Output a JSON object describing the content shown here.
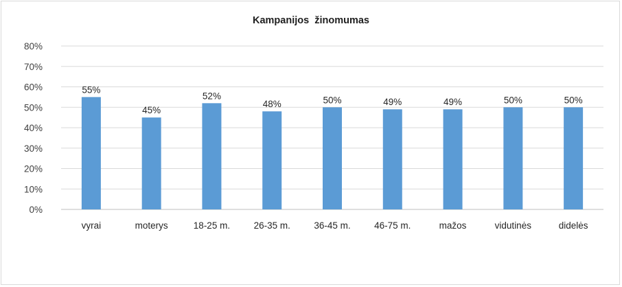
{
  "chart_data": {
    "type": "bar",
    "title": "Kampanijos  žinomumas",
    "xlabel": "",
    "ylabel": "",
    "categories": [
      "vyrai",
      "moterys",
      "18-25 m.",
      "26-35 m.",
      "36-45 m.",
      "46-75 m.",
      "mažos",
      "vidutinės",
      "didelės"
    ],
    "values": [
      55,
      45,
      52,
      48,
      50,
      49,
      49,
      50,
      50
    ],
    "data_labels": [
      "55%",
      "45%",
      "52%",
      "48%",
      "50%",
      "49%",
      "49%",
      "50%",
      "50%"
    ],
    "ylim": [
      0,
      80
    ],
    "yticks": [
      "0%",
      "10%",
      "20%",
      "30%",
      "40%",
      "50%",
      "60%",
      "70%",
      "80%"
    ],
    "grid": true,
    "legend": "none",
    "colors": {
      "bar": "#5b9bd5",
      "grid": "#d9d9d9",
      "axis": "#bfbfbf"
    }
  }
}
